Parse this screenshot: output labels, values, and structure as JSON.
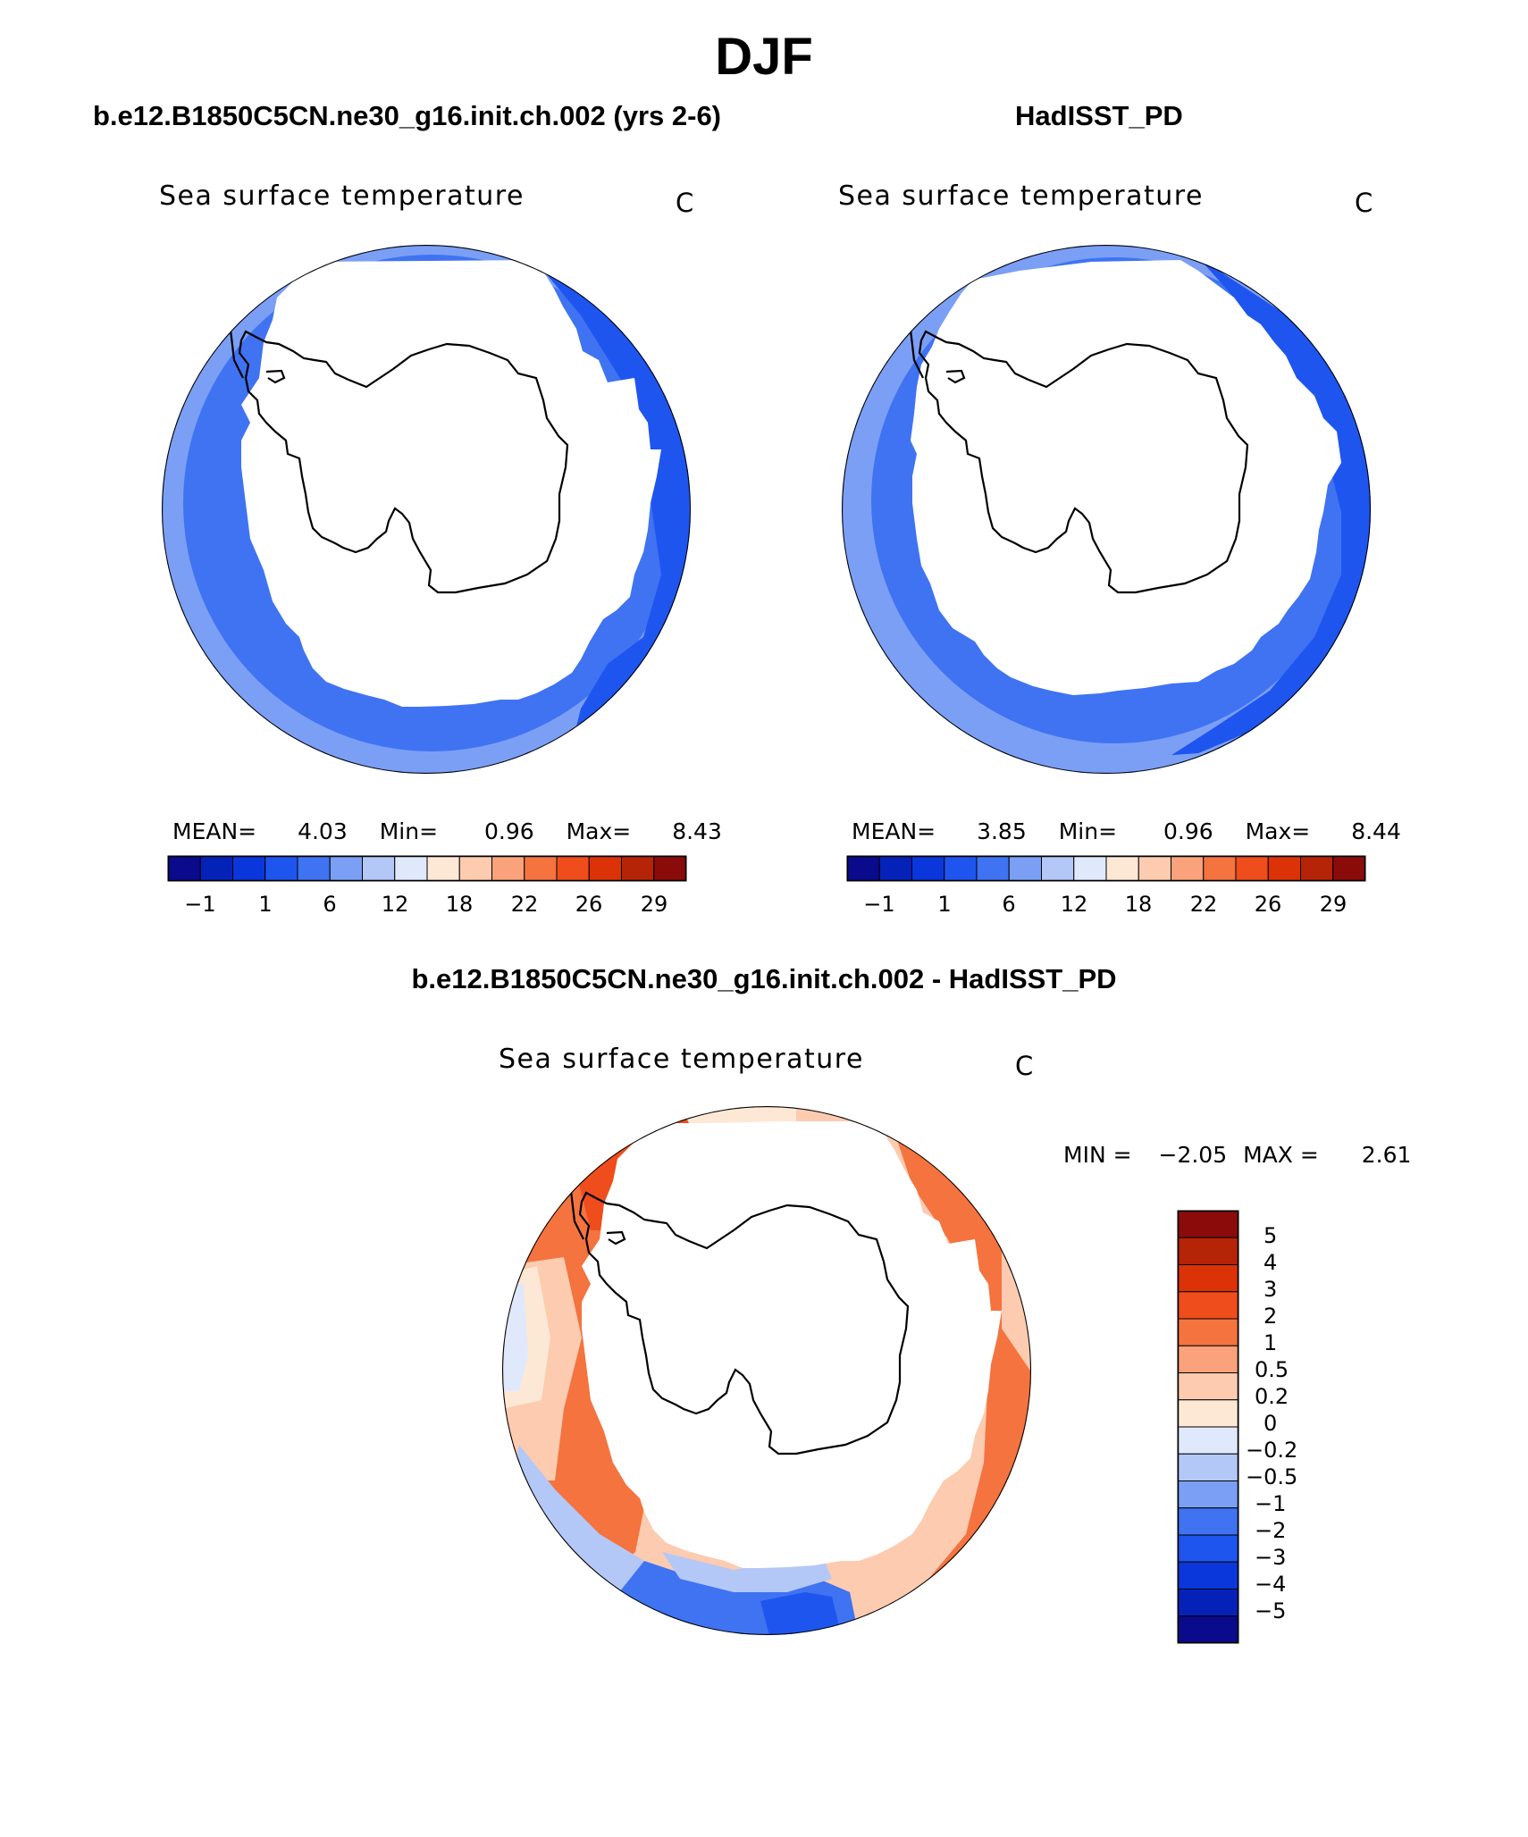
{
  "title": "DJF",
  "field_label": "Sea surface temperature",
  "units": "C",
  "colors": {
    "ice_mask": "#ffffff",
    "coast": "#000000",
    "blue_scale": [
      "#0a0a8c",
      "#0522b8",
      "#0a37dc",
      "#1f55ef",
      "#3f73f2",
      "#7b9ff5",
      "#b3c8f7",
      "#dfe9fb"
    ],
    "red_scale": [
      "#fde8d6",
      "#fccbb0",
      "#f9a27b",
      "#f4733f",
      "#ef4d1c",
      "#dc3208",
      "#b52406",
      "#8b0b0b"
    ]
  },
  "maps": [
    {
      "id": "model",
      "case_label": "b.e12.B1850C5CN.ne30_g16.init.ch.002 (yrs 2-6)",
      "stats": {
        "mean_label": "MEAN=",
        "mean": "4.03",
        "min_label": "Min=",
        "min": "0.96",
        "max_label": "Max=",
        "max": "8.43"
      },
      "colorbar_ticks": [
        "−1",
        "1",
        "6",
        "12",
        "18",
        "22",
        "26",
        "29"
      ]
    },
    {
      "id": "obs",
      "case_label": "HadISST_PD",
      "stats": {
        "mean_label": "MEAN=",
        "mean": "3.85",
        "min_label": "Min=",
        "min": "0.96",
        "max_label": "Max=",
        "max": "8.44"
      },
      "colorbar_ticks": [
        "−1",
        "1",
        "6",
        "12",
        "18",
        "22",
        "26",
        "29"
      ]
    },
    {
      "id": "diff",
      "case_label": "b.e12.B1850C5CN.ne30_g16.init.ch.002 - HadISST_PD",
      "stats": {
        "min_label": "MIN =",
        "min": "−2.05",
        "max_label": "MAX =",
        "max": "2.61"
      },
      "colorbar_ticks": [
        "5",
        "4",
        "3",
        "2",
        "1",
        "0.5",
        "0.2",
        "0",
        "−0.2",
        "−0.5",
        "−1",
        "−2",
        "−3",
        "−4",
        "−5"
      ]
    }
  ]
}
